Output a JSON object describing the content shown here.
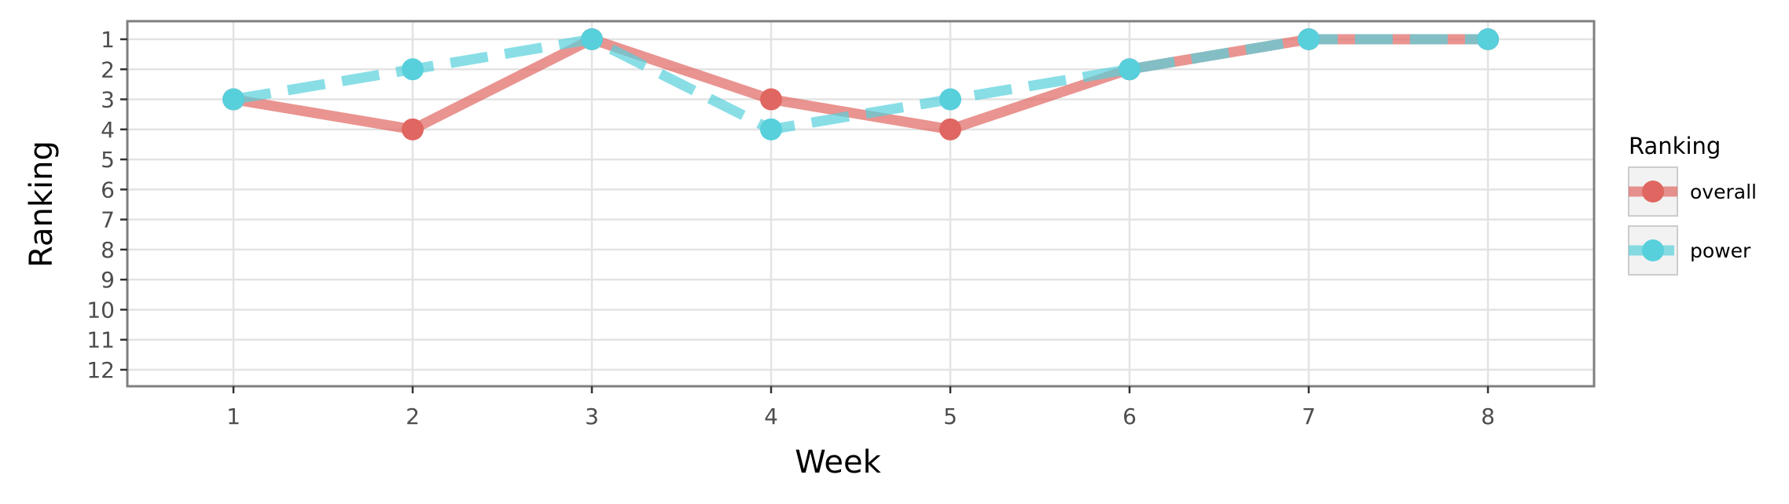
{
  "chart_data": {
    "type": "line",
    "xlabel": "Week",
    "ylabel": "Ranking",
    "x": [
      1,
      2,
      3,
      4,
      5,
      6,
      7,
      8
    ],
    "x_ticks": [
      "1",
      "2",
      "3",
      "4",
      "5",
      "6",
      "7",
      "8"
    ],
    "y_ticks": [
      "1",
      "2",
      "3",
      "4",
      "5",
      "6",
      "7",
      "8",
      "9",
      "10",
      "11",
      "12"
    ],
    "ylim": [
      1,
      12
    ],
    "y_reversed": true,
    "grid": true,
    "legend": {
      "title": "Ranking",
      "position": "right"
    },
    "series": [
      {
        "name": "overall",
        "values": [
          3,
          4,
          1,
          3,
          4,
          2,
          1,
          1
        ],
        "color": "#e06661",
        "line_style": "solid"
      },
      {
        "name": "power",
        "values": [
          3,
          2,
          1,
          4,
          3,
          2,
          1,
          1
        ],
        "color": "#57d0dc",
        "line_style": "dashed"
      }
    ]
  }
}
